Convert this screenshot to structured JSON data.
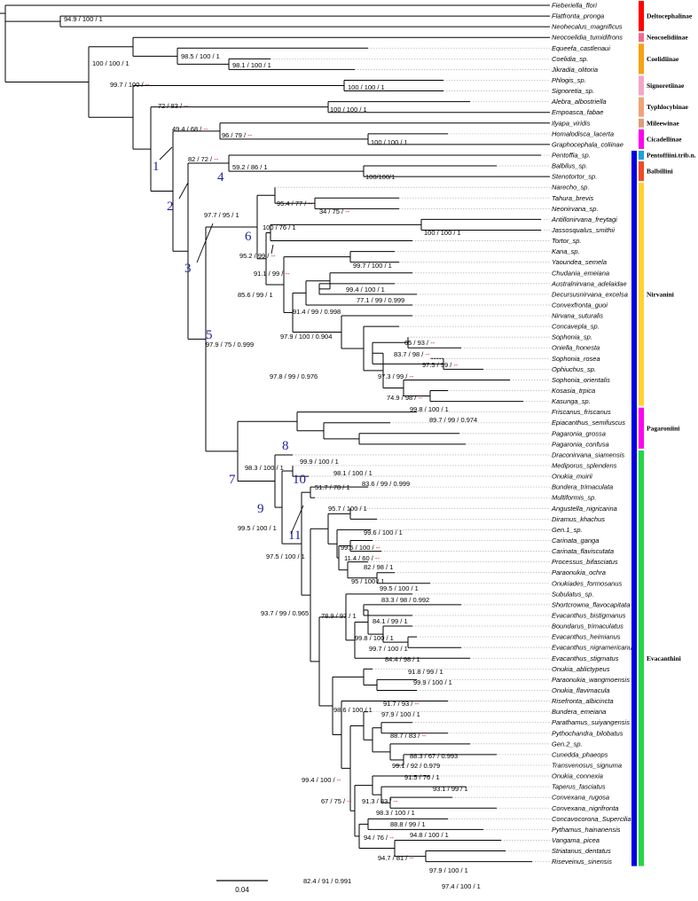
{
  "taxa": [
    "Fieberiella_flori",
    "Flatfronta_pronga",
    "Neohecalus_magnificus",
    "Neocoelidia_tumidifrons",
    "Equeefa_castlenaui",
    "Coelidia_sp.",
    "Jikradia_olitoria",
    "Phlogis_sp.",
    "Signoretia_sp.",
    "Alebra_albostriella",
    "Empoasca_fabae",
    "Ilyapa_viridis",
    "Homalodisca_lacerta",
    "Graphocephala_coliinae",
    "Pentoffia_sp.",
    "Balbilus_sp.",
    "Stenotortor_sp.",
    "Narecho_sp.",
    "Tahura_brevis",
    "Neonirvana_sp.",
    "Antillonirvana_freytagi",
    "Jassosqualus_smithii",
    "Tortor_sp.",
    "Kana_sp.",
    "Yaoundea_semela",
    "Chudania_emeiana",
    "Australnirvana_adelaidae",
    "Decursusnirvana_excelsa",
    "Convexfronta_guoi",
    "Nirvana_suturalis",
    "Concavepla_sp.",
    "Sophonia_sp.",
    "Oniella_honesta",
    "Sophonia_rosea",
    "Ophiuchus_sp.",
    "Sophonia_orientalis",
    "Kosasia_trpica",
    "Kasunga_sp.",
    "Friscanus_friscanus",
    "Epiacanthus_semifuscus",
    "Pagaronia_grossa",
    "Pagaronia_confusa",
    "Draconirvana_siamensis",
    "Mediporus_splendens",
    "Onukia_muirii",
    "Bundera_trimaculata",
    "Multiformis_sp.",
    "Angustella_nigricarina",
    "Diramus_khachus",
    "Gen.1_sp.",
    "Carinata_ganga",
    "Carinata_flaviscutata",
    "Processus_bifasciatus",
    "Paraonukia_ochra",
    "Onukiades_formosanus",
    "Subulatus_sp.",
    "Shortcrowna_flavocapitata",
    "Evacanthus_bistigmanus",
    "Boundarus_trimaculatus",
    "Evacanthus_heimianus",
    "Evacanthus_nigramericanus",
    "Evacanthus_stigmatus",
    "Onukia_ablictypeus",
    "Paraonukia_wangmoensis",
    "Onukia_flavimacula",
    "Risefronta_albicincta",
    "Bundera_emeiana",
    "Parathamus_suiyangensis",
    "Pythochandra_bilobatus",
    "Gen.2_sp.",
    "Cunedda_phaeops",
    "Transvenosus_signuma",
    "Onukia_connexia",
    "Taperus_fasciatus",
    "Convexana_rugosa",
    "Convexana_nigrifronta",
    "Concavocorona_Supercilia",
    "Pythamus_hainanensis",
    "Vangama_picea",
    "Striatanus_dentatus",
    "Riseveinus_sinensis"
  ],
  "support_values": [
    {
      "text": "94.9 / 100 / 1"
    },
    {
      "text": "100 / 100 / 1"
    },
    {
      "text": "98.5 / 100 / 1"
    },
    {
      "text": "98.1 / 100 / 1"
    },
    {
      "text": "99.7 / 100 /",
      "dash": "--"
    },
    {
      "text": "100 / 100 / 1"
    },
    {
      "text": "72 / 83 /",
      "dash": "--"
    },
    {
      "text": "100 / 100 / 1"
    },
    {
      "text": "49.4 / 68 /",
      "dash": "--"
    },
    {
      "text": "96 / 79 /",
      "dash": "--"
    },
    {
      "text": "100 / 100 / 1"
    },
    {
      "text": "82 / 72 /",
      "dash": "--"
    },
    {
      "text": "59.2 / 86 / 1"
    },
    {
      "text": "100/100/1"
    },
    {
      "text": "97.7 / 95 / 1"
    },
    {
      "text": "95.4 / 77 /",
      "dash": "--"
    },
    {
      "text": "34 / 75 /",
      "dash": "--"
    },
    {
      "text": "100 / 76 / 1"
    },
    {
      "text": "100 / 100 / 1"
    },
    {
      "text": "95.2 / 99 /",
      "dash": "--"
    },
    {
      "text": "91.1 / 99 /",
      "dash": "--"
    },
    {
      "text": "99.7 / 100 / 1"
    },
    {
      "text": "85.6 / 99 / 1"
    },
    {
      "text": "99.4 / 100 / 1"
    },
    {
      "text": "77.1 / 99 / 0.999"
    },
    {
      "text": "91.4 / 99 / 0.998"
    },
    {
      "text": "97.9 / 100 / 0.904"
    },
    {
      "text": "97.9 / 75 / 0.999"
    },
    {
      "text": "65 / 93 /",
      "dash": "--"
    },
    {
      "text": "83.7 / 98 /",
      "dash": "--"
    },
    {
      "text": "97.5 / 99 /",
      "dash": "--"
    },
    {
      "text": "97.8 / 99 / 0.976"
    },
    {
      "text": "97.3 / 99 /",
      "dash": "--"
    },
    {
      "text": "74.9 / 98 /",
      "dash": "--"
    },
    {
      "text": "99.8 / 100 / 1"
    },
    {
      "text": "89.7 / 99 / 0.974"
    },
    {
      "text": "99.9 / 100 / 1"
    },
    {
      "text": "98.1 / 100 / 1"
    },
    {
      "text": "83.6 / 99 / 0.999"
    },
    {
      "text": "98.3 / 100 / 1"
    },
    {
      "text": "51.7 / 78 / 1"
    },
    {
      "text": "99.5 / 100 / 1"
    },
    {
      "text": "95.7 / 100 / 1"
    },
    {
      "text": "99.6 / 100 / 1"
    },
    {
      "text": "97.5 / 100 / 1"
    },
    {
      "text": "99.5 / 100 /",
      "dash": "--"
    },
    {
      "text": "11.4 / 60 /",
      "dash": "--"
    },
    {
      "text": "82 / 98 / 1"
    },
    {
      "text": "95 / 100 / 1"
    },
    {
      "text": "93.7 / 99 / 0.965"
    },
    {
      "text": "99.5 / 100 / 1"
    },
    {
      "text": "83.3 / 98 / 0.992"
    },
    {
      "text": "78.9 / 97 / 1"
    },
    {
      "text": "84.1 / 99 / 1"
    },
    {
      "text": "99.8 / 100 / 1"
    },
    {
      "text": "99.7 / 100 / 1"
    },
    {
      "text": "84.4 / 98 / 1"
    },
    {
      "text": "91.8 / 99 / 1"
    },
    {
      "text": "99.9 / 100 / 1"
    },
    {
      "text": "98.6 / 100 / 1"
    },
    {
      "text": "91.7 / 93 /",
      "dash": "--"
    },
    {
      "text": "97.9 / 100 / 1"
    },
    {
      "text": "99.4 / 100 /",
      "dash": "--"
    },
    {
      "text": "88.7 / 83 /",
      "dash": "--"
    },
    {
      "text": "88.3 / 67 / 0.993"
    },
    {
      "text": "99.1 / 92 / 0.979"
    },
    {
      "text": "67 / 75 /",
      "dash": "--"
    },
    {
      "text": "91.5 / 76 / 1"
    },
    {
      "text": "93.1 / 99 / 1"
    },
    {
      "text": "91.3 / 83 /",
      "dash": "--"
    },
    {
      "text": "98.3 / 100 / 1"
    },
    {
      "text": "88.8 / 99 / 1"
    },
    {
      "text": "94.8 / 100 / 1"
    },
    {
      "text": "94 / 76 /",
      "dash": "--"
    },
    {
      "text": "94.7 / 81 /",
      "dash": "--"
    },
    {
      "text": "82.4 / 91 / 0.991"
    },
    {
      "text": "97.9 / 100 / 1"
    },
    {
      "text": "97.4 / 100 / 1"
    }
  ],
  "node_numbers": [
    "1",
    "2",
    "3",
    "4",
    "5",
    "6",
    "7",
    "8",
    "9",
    "10",
    "11"
  ],
  "groups": [
    {
      "name": "Deltocephalinae",
      "color": "#ff0000"
    },
    {
      "name": "Neocoelidiinae",
      "color": "#ee6b8e"
    },
    {
      "name": "Coelidiinae",
      "color": "#f5a214"
    },
    {
      "name": "Signoretiinae",
      "color": "#f4a6c8"
    },
    {
      "name": "Typhlocybinae",
      "color": "#f3a278"
    },
    {
      "name": "Mileewinae",
      "color": "#d9a07a"
    },
    {
      "name": "Cicadellinae",
      "color": "#ff00ee"
    },
    {
      "name": "Pentoffiini.trib.n.",
      "color": "#18a3d6"
    },
    {
      "name": "Balbillini",
      "color": "#f04a24"
    },
    {
      "name": "Nirvanini",
      "color": "#ffd22e"
    },
    {
      "name": "Pagaroniini",
      "color": "#ff00ee"
    },
    {
      "name": "Evacanthini",
      "color": "#22d645"
    }
  ],
  "outer_bar_color": "#0000e0",
  "scale_bar": {
    "label": "0.04"
  }
}
